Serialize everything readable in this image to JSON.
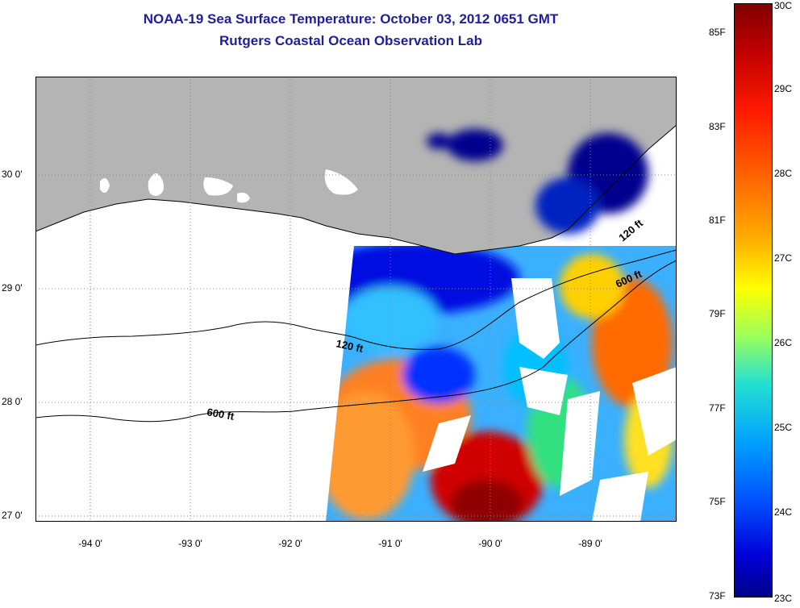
{
  "title": {
    "line1": "NOAA-19 Sea Surface Temperature:  October 03, 2012 0651 GMT",
    "line2": "Rutgers Coastal Ocean Observation Lab"
  },
  "map": {
    "lat_labels": [
      "30 0'",
      "29 0'",
      "28 0'",
      "27 0'"
    ],
    "lon_labels": [
      "-94 0'",
      "-93 0'",
      "-92 0'",
      "-91 0'",
      "-90 0'",
      "-89 0'"
    ],
    "contour_labels": [
      "120 ft",
      "600 ft",
      "120 ft",
      "600 ft"
    ],
    "colors": {
      "land": "#b4b4b4",
      "nodata": "#ffffff",
      "grid": "#888888"
    }
  },
  "colorbar": {
    "fahrenheit": [
      "85F",
      "83F",
      "81F",
      "79F",
      "77F",
      "75F",
      "73F"
    ],
    "celsius": [
      "30C",
      "29C",
      "28C",
      "27C",
      "26C",
      "25C",
      "24C",
      "23C"
    ]
  }
}
